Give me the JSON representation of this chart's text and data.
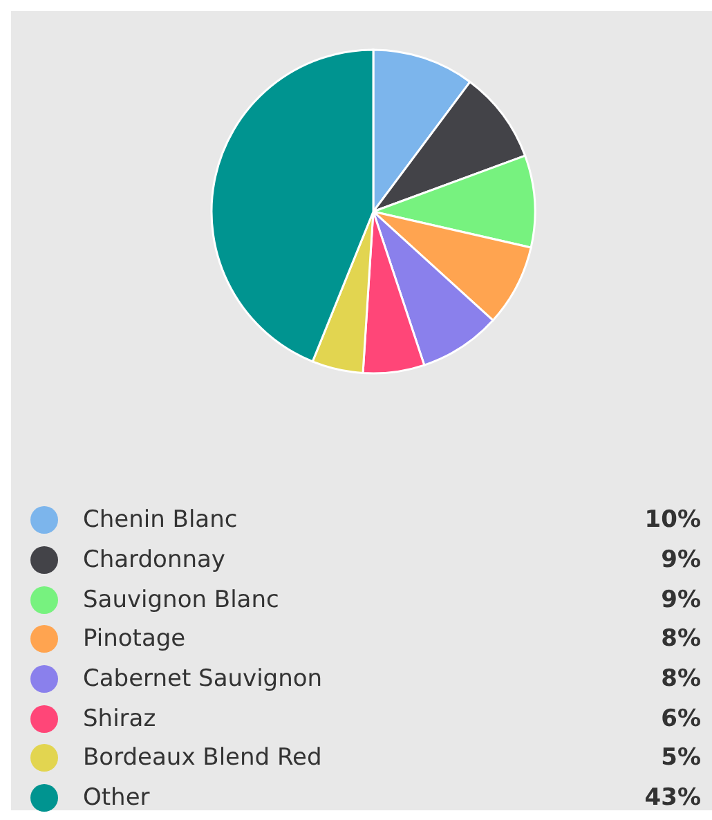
{
  "chart_data": {
    "type": "pie",
    "categories": [
      "Chenin Blanc",
      "Chardonnay",
      "Sauvignon Blanc",
      "Pinotage",
      "Cabernet Sauvignon",
      "Shiraz",
      "Bordeaux Blend Red",
      "Other"
    ],
    "values": [
      10,
      9,
      9,
      8,
      8,
      6,
      5,
      43
    ],
    "colors": [
      "#7cb5ec",
      "#434348",
      "#77f27f",
      "#ffa450",
      "#8a80ec",
      "#ff4678",
      "#e2d550",
      "#009490"
    ],
    "value_labels": [
      "10%",
      "9%",
      "9%",
      "8%",
      "8%",
      "6%",
      "5%",
      "43%"
    ],
    "legend": "bottom"
  }
}
